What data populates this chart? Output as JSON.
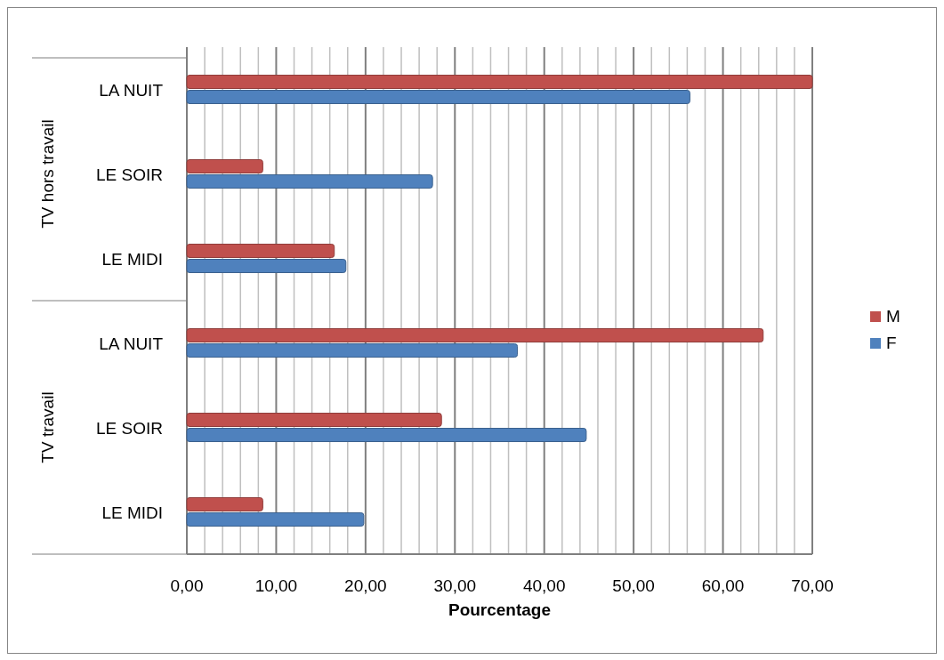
{
  "chart_data": {
    "type": "bar",
    "orientation": "horizontal",
    "xlabel": "Pourcentage",
    "categories": [
      "LA NUIT",
      "LE SOIR",
      "LE MIDI",
      "LA NUIT",
      "LE SOIR",
      "LE MIDI"
    ],
    "annotations": [
      "TV hors travail",
      "TV travail"
    ],
    "series": [
      {
        "name": "M",
        "color": "#c0504d",
        "values": [
          70.0,
          8.5,
          16.5,
          64.5,
          28.5,
          8.5
        ]
      },
      {
        "name": "F",
        "color": "#4f81bd",
        "values": [
          56.3,
          27.5,
          17.8,
          37.0,
          44.7,
          19.8
        ]
      }
    ],
    "xlim": [
      0,
      70
    ],
    "xticks": [
      {
        "value": 0,
        "label": "0,00"
      },
      {
        "value": 2,
        "label": null
      },
      {
        "value": 4,
        "label": null
      },
      {
        "value": 6,
        "label": null
      },
      {
        "value": 8,
        "label": null
      },
      {
        "value": 10,
        "label": "10,00"
      },
      {
        "value": 12,
        "label": null
      },
      {
        "value": 14,
        "label": null
      },
      {
        "value": 16,
        "label": null
      },
      {
        "value": 18,
        "label": null
      },
      {
        "value": 20,
        "label": "20,00"
      },
      {
        "value": 22,
        "label": null
      },
      {
        "value": 24,
        "label": null
      },
      {
        "value": 26,
        "label": null
      },
      {
        "value": 28,
        "label": null
      },
      {
        "value": 30,
        "label": "30,00"
      },
      {
        "value": 32,
        "label": null
      },
      {
        "value": 34,
        "label": null
      },
      {
        "value": 36,
        "label": null
      },
      {
        "value": 38,
        "label": null
      },
      {
        "value": 40,
        "label": "40,00"
      },
      {
        "value": 42,
        "label": null
      },
      {
        "value": 44,
        "label": null
      },
      {
        "value": 46,
        "label": null
      },
      {
        "value": 48,
        "label": null
      },
      {
        "value": 50,
        "label": "50,00"
      },
      {
        "value": 52,
        "label": null
      },
      {
        "value": 54,
        "label": null
      },
      {
        "value": 56,
        "label": null
      },
      {
        "value": 58,
        "label": null
      },
      {
        "value": 60,
        "label": "60,00"
      },
      {
        "value": 62,
        "label": null
      },
      {
        "value": 64,
        "label": null
      },
      {
        "value": 66,
        "label": null
      },
      {
        "value": 68,
        "label": null
      },
      {
        "value": 70,
        "label": "70,00"
      }
    ],
    "grid": "x",
    "legend": "right"
  }
}
